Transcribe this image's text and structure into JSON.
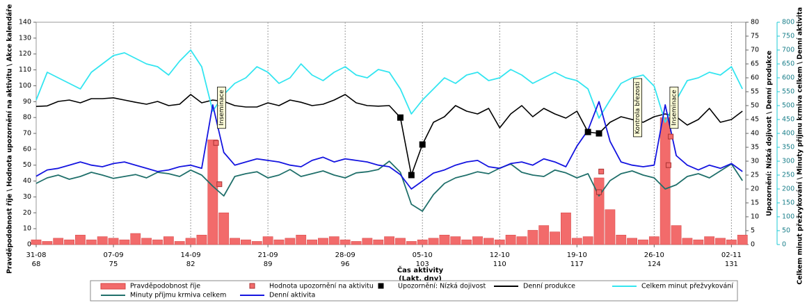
{
  "chart_data": {
    "type": "combo",
    "x_title": "Čas aktivity",
    "x_subtitle": "(Lakt. dny)",
    "y_label": "Pravděpodobnost říje \\ Hodnota upozornění na aktivitu \\ Akce kalendáře",
    "y2_label": "Upozornění: Nízká dojivost \\ Denní produkce",
    "y3_label": "Celkem minut přežvykování \\ Minuty příjmu krmiva celkem \\ Denní aktivita",
    "x": [
      0,
      1,
      2,
      3,
      4,
      5,
      6,
      7,
      8,
      9,
      10,
      11,
      12,
      13,
      14,
      15,
      16,
      17,
      18,
      19,
      20,
      21,
      22,
      23,
      24,
      25,
      26,
      27,
      28,
      29,
      30,
      31,
      32,
      33,
      34,
      35,
      36,
      37,
      38,
      39,
      40,
      41,
      42,
      43,
      44,
      45,
      46,
      47,
      48,
      49,
      50,
      51,
      52,
      53,
      54,
      55,
      56,
      57,
      58,
      59,
      60,
      61,
      62,
      63,
      64
    ],
    "xlim": [
      0,
      64.3
    ],
    "xticks": [
      {
        "value": 0,
        "label": "31-08"
      },
      {
        "value": 7,
        "label": "07-09"
      },
      {
        "value": 14,
        "label": "14-09"
      },
      {
        "value": 21,
        "label": "21-09"
      },
      {
        "value": 28,
        "label": "28-09"
      },
      {
        "value": 35,
        "label": "05-10"
      },
      {
        "value": 42,
        "label": "12-10"
      },
      {
        "value": 49,
        "label": "19-10"
      },
      {
        "value": 56,
        "label": "26-10"
      },
      {
        "value": 63,
        "label": "02-11"
      }
    ],
    "xtick_days_in_milk": [
      68,
      75,
      82,
      89,
      96,
      103,
      110,
      117,
      124,
      131
    ],
    "ylim": [
      0,
      140
    ],
    "yticks": [
      0,
      10,
      20,
      30,
      40,
      50,
      60,
      70,
      80,
      90,
      100,
      110,
      120,
      130,
      140
    ],
    "y2lim": [
      0,
      80
    ],
    "y2ticks": [
      0,
      5,
      10,
      15,
      20,
      25,
      30,
      35,
      40,
      45,
      50,
      55,
      60,
      65,
      70,
      75,
      80
    ],
    "y3lim": [
      0,
      800
    ],
    "y3ticks": [
      0,
      50,
      100,
      150,
      200,
      250,
      300,
      350,
      400,
      450,
      500,
      550,
      600,
      650,
      700,
      750,
      800
    ],
    "grid": true,
    "series": [
      {
        "name": "Pravděpodobnost říje",
        "type": "bar",
        "axis": "y",
        "color": "#f26b6b",
        "values": [
          3,
          2,
          4,
          3,
          6,
          3,
          5,
          4,
          3,
          7,
          4,
          3,
          5,
          2,
          4,
          6,
          66,
          20,
          4,
          3,
          2,
          5,
          3,
          4,
          6,
          3,
          4,
          5,
          3,
          2,
          4,
          3,
          5,
          4,
          2,
          3,
          4,
          6,
          5,
          3,
          5,
          4,
          3,
          6,
          5,
          9,
          12,
          8,
          20,
          4,
          5,
          42,
          22,
          6,
          4,
          3,
          5,
          80,
          12,
          4,
          3,
          5,
          4,
          3,
          6
        ]
      },
      {
        "name": "Hodnota upozornění na aktivitu",
        "type": "scatter",
        "axis": "y",
        "color": "#f26b6b",
        "x": [
          16.3,
          16.6,
          51.0,
          51.2,
          57.3,
          57.5
        ],
        "values": [
          64,
          38,
          33,
          46,
          50,
          68
        ]
      },
      {
        "name": "Upozornění: Nízká dojivost",
        "type": "scatter",
        "axis": "y2",
        "color": "#000000",
        "x": [
          33,
          34,
          35,
          50,
          51
        ],
        "values": [
          45.7,
          25,
          36,
          40.5,
          40
        ]
      },
      {
        "name": "Denní produkce",
        "type": "line",
        "axis": "y2",
        "color": "#000000",
        "values": [
          49.7,
          49.9,
          51.5,
          52,
          51,
          52.5,
          52.5,
          52.8,
          52,
          51.2,
          50.5,
          51.5,
          50,
          50.5,
          54,
          51,
          52,
          51.5,
          50,
          49.5,
          49.5,
          51,
          50,
          52,
          51.2,
          50,
          50.5,
          52,
          54,
          51,
          50,
          49.8,
          50,
          45.7,
          25,
          36,
          44,
          46,
          50,
          48,
          47,
          49,
          42,
          47,
          50,
          46,
          49,
          47,
          45.5,
          48,
          40.5,
          40,
          44,
          46,
          45,
          44,
          46,
          47,
          46,
          43,
          45,
          49,
          44,
          45,
          48
        ]
      },
      {
        "name": "Celkem minut přežvykování",
        "type": "line",
        "axis": "y3",
        "color": "#33e5f0",
        "values": [
          520,
          620,
          600,
          580,
          560,
          620,
          650,
          680,
          690,
          670,
          650,
          640,
          610,
          660,
          700,
          640,
          480,
          540,
          580,
          600,
          640,
          620,
          580,
          600,
          650,
          610,
          590,
          620,
          640,
          610,
          600,
          630,
          620,
          560,
          470,
          520,
          560,
          600,
          580,
          610,
          620,
          590,
          600,
          630,
          610,
          580,
          600,
          620,
          600,
          590,
          560,
          455,
          520,
          580,
          600,
          610,
          570,
          440,
          520,
          590,
          600,
          620,
          610,
          640,
          560
        ]
      },
      {
        "name": "Minuty příjmu krmiva celkem",
        "type": "line",
        "axis": "y3",
        "color": "#1f6f6a",
        "values": [
          220,
          240,
          250,
          235,
          245,
          260,
          250,
          238,
          245,
          252,
          240,
          260,
          255,
          245,
          268,
          250,
          210,
          175,
          245,
          255,
          262,
          240,
          250,
          270,
          245,
          255,
          265,
          250,
          240,
          258,
          262,
          270,
          300,
          260,
          145,
          120,
          180,
          220,
          240,
          250,
          262,
          255,
          275,
          290,
          260,
          250,
          245,
          268,
          258,
          240,
          255,
          175,
          230,
          255,
          265,
          250,
          240,
          200,
          215,
          245,
          255,
          240,
          265,
          290,
          230
        ]
      },
      {
        "name": "Denní aktivita",
        "type": "line",
        "axis": "y",
        "color": "#1414e0",
        "values": [
          43,
          47,
          48,
          50,
          52,
          50,
          49,
          51,
          52,
          50,
          48,
          46,
          47,
          49,
          50,
          48,
          88,
          58,
          50,
          52,
          54,
          53,
          52,
          50,
          49,
          53,
          55,
          52,
          54,
          53,
          52,
          50,
          49,
          44,
          35,
          40,
          45,
          47,
          50,
          52,
          53,
          49,
          48,
          51,
          52,
          50,
          54,
          52,
          49,
          62,
          72,
          90,
          65,
          52,
          50,
          49,
          50,
          88,
          56,
          50,
          47,
          50,
          48,
          51,
          46
        ]
      }
    ],
    "annotations": [
      {
        "x": 16.8,
        "label": "Inseminace"
      },
      {
        "x": 54.5,
        "label": "Kontrola březosti"
      },
      {
        "x": 57.8,
        "label": "Inseminace"
      }
    ]
  }
}
